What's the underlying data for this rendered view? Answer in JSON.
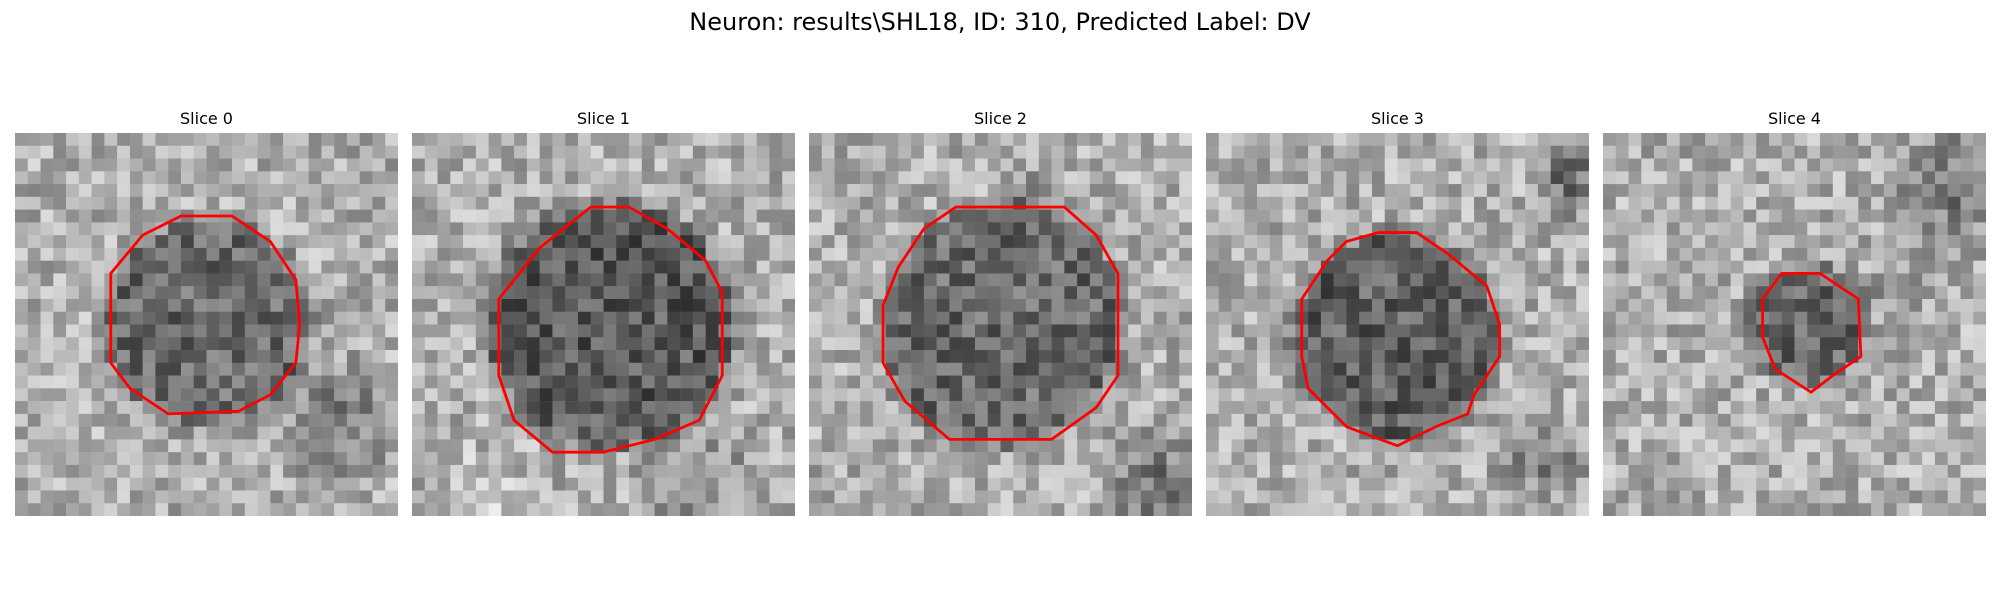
{
  "figure": {
    "title": "Neuron: results\\SHL18, ID: 310, Predicted Label: DV"
  },
  "panels": [
    {
      "title": "Slice 0"
    },
    {
      "title": "Slice 1"
    },
    {
      "title": "Slice 2"
    },
    {
      "title": "Slice 3"
    },
    {
      "title": "Slice 4"
    }
  ],
  "colors": {
    "contour": "#ff0000",
    "background": "#ffffff"
  }
}
